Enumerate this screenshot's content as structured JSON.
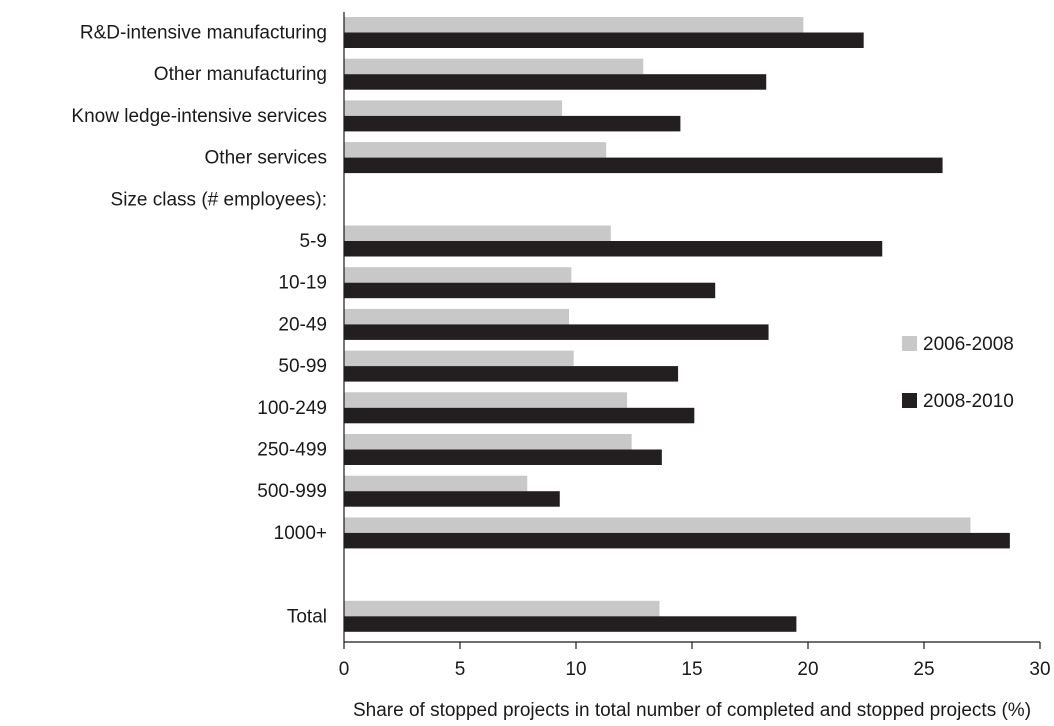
{
  "chart_data": {
    "type": "bar",
    "orientation": "horizontal",
    "title": "",
    "xlabel": "Share of stopped projects in total number of completed and stopped projects (%)",
    "ylabel": "",
    "xlim": [
      0,
      30
    ],
    "xticks": [
      0,
      5,
      10,
      15,
      20,
      25,
      30
    ],
    "grid": false,
    "legend_position": "right",
    "rows": [
      {
        "label": "R&D-intensive manufacturing",
        "values": [
          19.8,
          22.4
        ]
      },
      {
        "label": "Other manufacturing",
        "values": [
          12.9,
          18.2
        ]
      },
      {
        "label": "Know ledge-intensive services",
        "values": [
          9.4,
          14.5
        ]
      },
      {
        "label": "Other services",
        "values": [
          11.3,
          25.8
        ]
      },
      {
        "label": "Size class (# employees):",
        "values": null
      },
      {
        "label": "5-9",
        "values": [
          11.5,
          23.2
        ]
      },
      {
        "label": "10-19",
        "values": [
          9.8,
          16.0
        ]
      },
      {
        "label": "20-49",
        "values": [
          9.7,
          18.3
        ]
      },
      {
        "label": "50-99",
        "values": [
          9.9,
          14.4
        ]
      },
      {
        "label": "100-249",
        "values": [
          12.2,
          15.1
        ]
      },
      {
        "label": "250-499",
        "values": [
          12.4,
          13.7
        ]
      },
      {
        "label": "500-999",
        "values": [
          7.9,
          9.3
        ]
      },
      {
        "label": "1000+",
        "values": [
          27.0,
          28.7
        ]
      },
      {
        "label": "",
        "values": null
      },
      {
        "label": "Total",
        "values": [
          13.6,
          19.5
        ]
      }
    ],
    "series": [
      {
        "name": "2006-2008",
        "color": "#c8c8c8"
      },
      {
        "name": "2008-2010",
        "color": "#231f20"
      }
    ]
  }
}
